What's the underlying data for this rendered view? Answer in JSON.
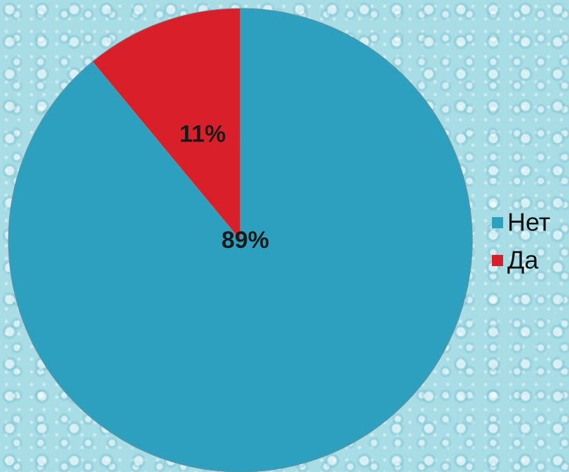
{
  "chart_data": {
    "type": "pie",
    "categories": [
      "Нет",
      "Да"
    ],
    "values": [
      89,
      11
    ],
    "value_labels": [
      "89%",
      "11%"
    ],
    "colors": [
      "#2ea0bf",
      "#d9202a"
    ],
    "legend": "right"
  }
}
